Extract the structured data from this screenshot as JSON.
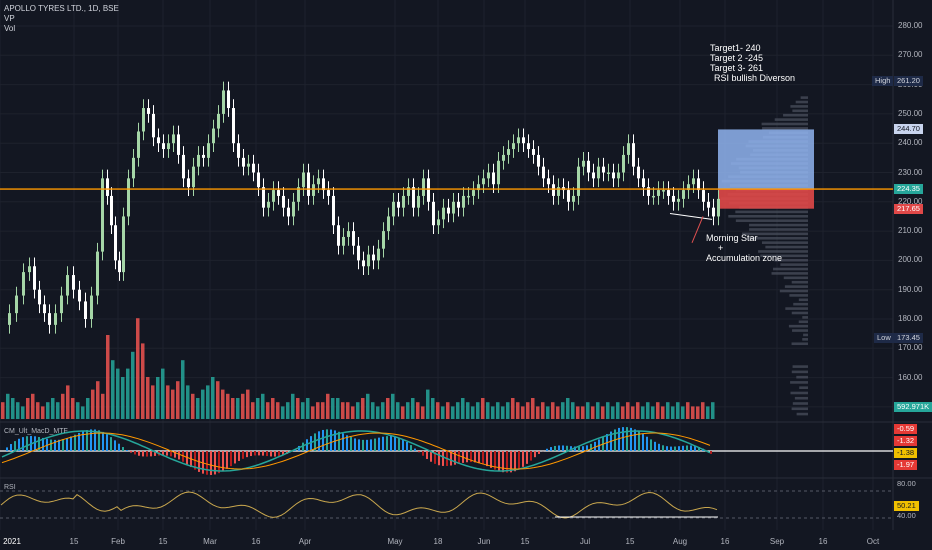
{
  "legend": {
    "title": "APOLLO TYRES LTD., 1D, BSE",
    "line2": "VP",
    "line3": "Vol"
  },
  "annotations": {
    "targets": [
      "Target1- 240",
      "Target 2 -245",
      "Target 3- 261"
    ],
    "rsi_note": "RSI bullish Diverson",
    "pattern": [
      "Morning Star",
      "+",
      "Accumulation zone"
    ]
  },
  "indicators": {
    "macd_label": "CM_Ult_MacD_MTF",
    "rsi_label": "RSI"
  },
  "colors": {
    "background": "#131722",
    "up": "#26a69a",
    "down": "#ef5350",
    "candle_up": "#a5d6a7",
    "candle_down": "#ffffff",
    "hline": "#ff9800",
    "rsi": "#c9a74e"
  },
  "chart_data": {
    "type": "candlestick",
    "symbol": "APOLLO TYRES LTD.",
    "interval": "1D",
    "exchange": "BSE",
    "x_ticks": [
      "2021",
      "15",
      "Feb",
      "15",
      "Mar",
      "16",
      "Apr",
      "May",
      "18",
      "Jun",
      "15",
      "Jul",
      "15",
      "Aug",
      "16",
      "Sep",
      "16",
      "Oct"
    ],
    "y_ticks": [
      "280.00",
      "270.00",
      "260.00",
      "250.00",
      "240.00",
      "230.00",
      "220.00",
      "210.00",
      "200.00",
      "190.00",
      "180.00",
      "170.00",
      "160.00",
      "150.00"
    ],
    "ylim": [
      145,
      285
    ],
    "price_labels": [
      {
        "text": "High",
        "value": "261.20"
      },
      {
        "text": "",
        "value": "244.70"
      },
      {
        "text": "",
        "value": "224.35"
      },
      {
        "text": "",
        "value": "217.65"
      },
      {
        "text": "Low",
        "value": "173.45"
      }
    ],
    "volume_label": "592.971K",
    "horizontal_line": 224.35,
    "profile_zone": {
      "top": 244.7,
      "bottom": 217.65,
      "mid": 224.35
    },
    "price_path": [
      [
        1,
        178
      ],
      [
        8,
        182
      ],
      [
        15,
        188
      ],
      [
        22,
        196
      ],
      [
        28,
        198
      ],
      [
        33,
        190
      ],
      [
        38,
        185
      ],
      [
        43,
        182
      ],
      [
        48,
        178
      ],
      [
        54,
        182
      ],
      [
        60,
        188
      ],
      [
        66,
        195
      ],
      [
        72,
        190
      ],
      [
        78,
        186
      ],
      [
        84,
        180
      ],
      [
        90,
        188
      ],
      [
        96,
        203
      ],
      [
        101,
        228
      ],
      [
        106,
        222
      ],
      [
        110,
        212
      ],
      [
        114,
        200
      ],
      [
        118,
        196
      ],
      [
        122,
        215
      ],
      [
        127,
        228
      ],
      [
        132,
        235
      ],
      [
        137,
        244
      ],
      [
        142,
        252
      ],
      [
        147,
        250
      ],
      [
        152,
        242
      ],
      [
        157,
        240
      ],
      [
        162,
        238
      ],
      [
        167,
        240
      ],
      [
        172,
        243
      ],
      [
        177,
        236
      ],
      [
        182,
        228
      ],
      [
        187,
        225
      ],
      [
        192,
        232
      ],
      [
        197,
        236
      ],
      [
        202,
        235
      ],
      [
        207,
        240
      ],
      [
        212,
        245
      ],
      [
        217,
        250
      ],
      [
        222,
        258
      ],
      [
        227,
        252
      ],
      [
        232,
        240
      ],
      [
        237,
        235
      ],
      [
        242,
        232
      ],
      [
        247,
        233
      ],
      [
        252,
        230
      ],
      [
        257,
        225
      ],
      [
        262,
        218
      ],
      [
        267,
        220
      ],
      [
        272,
        224
      ],
      [
        277,
        222
      ],
      [
        282,
        218
      ],
      [
        287,
        215
      ],
      [
        292,
        220
      ],
      [
        297,
        225
      ],
      [
        302,
        230
      ],
      [
        307,
        222
      ],
      [
        312,
        226
      ],
      [
        317,
        228
      ],
      [
        322,
        224
      ],
      [
        327,
        222
      ],
      [
        332,
        212
      ],
      [
        337,
        205
      ],
      [
        342,
        208
      ],
      [
        347,
        210
      ],
      [
        352,
        205
      ],
      [
        357,
        200
      ],
      [
        362,
        198
      ],
      [
        367,
        202
      ],
      [
        372,
        200
      ],
      [
        377,
        204
      ],
      [
        382,
        210
      ],
      [
        387,
        215
      ],
      [
        392,
        220
      ],
      [
        397,
        218
      ],
      [
        402,
        222
      ],
      [
        407,
        225
      ],
      [
        412,
        218
      ],
      [
        417,
        222
      ],
      [
        422,
        228
      ],
      [
        427,
        220
      ],
      [
        432,
        212
      ],
      [
        437,
        214
      ],
      [
        442,
        218
      ],
      [
        447,
        216
      ],
      [
        452,
        220
      ],
      [
        457,
        218
      ],
      [
        462,
        222
      ],
      [
        467,
        222
      ],
      [
        472,
        224
      ],
      [
        477,
        226
      ],
      [
        482,
        228
      ],
      [
        487,
        230
      ],
      [
        492,
        226
      ],
      [
        497,
        234
      ],
      [
        502,
        236
      ],
      [
        507,
        238
      ],
      [
        512,
        240
      ],
      [
        517,
        242
      ],
      [
        522,
        240
      ],
      [
        527,
        238
      ],
      [
        532,
        236
      ],
      [
        537,
        232
      ],
      [
        542,
        228
      ],
      [
        547,
        226
      ],
      [
        552,
        222
      ],
      [
        557,
        225
      ],
      [
        562,
        224
      ],
      [
        567,
        220
      ],
      [
        572,
        222
      ],
      [
        577,
        232
      ],
      [
        582,
        234
      ],
      [
        587,
        230
      ],
      [
        592,
        228
      ],
      [
        597,
        232
      ],
      [
        602,
        230
      ],
      [
        607,
        230
      ],
      [
        612,
        228
      ],
      [
        617,
        230
      ],
      [
        622,
        236
      ],
      [
        627,
        240
      ],
      [
        632,
        232
      ],
      [
        637,
        228
      ],
      [
        642,
        225
      ],
      [
        647,
        222
      ],
      [
        652,
        222
      ],
      [
        657,
        224
      ],
      [
        662,
        224
      ],
      [
        667,
        222
      ],
      [
        672,
        220
      ],
      [
        677,
        221
      ],
      [
        682,
        224
      ],
      [
        687,
        226
      ],
      [
        692,
        228
      ],
      [
        697,
        224
      ],
      [
        702,
        220
      ],
      [
        707,
        218
      ],
      [
        712,
        215
      ],
      [
        717,
        221
      ]
    ],
    "volume": [
      4,
      6,
      5,
      4,
      3,
      5,
      6,
      4,
      3,
      4,
      5,
      4,
      6,
      8,
      5,
      4,
      3,
      5,
      7,
      9,
      6,
      20,
      14,
      12,
      10,
      12,
      16,
      24,
      18,
      10,
      8,
      10,
      12,
      8,
      7,
      9,
      14,
      8,
      6,
      5,
      7,
      8,
      10,
      9,
      7,
      6,
      5,
      5,
      6,
      7,
      4,
      5,
      6,
      4,
      5,
      4,
      3,
      4,
      6,
      5,
      4,
      5,
      3,
      4,
      4,
      6,
      5,
      5,
      4,
      4,
      3,
      4,
      5,
      6,
      4,
      3,
      4,
      5,
      6,
      4,
      3,
      4,
      5,
      4,
      3,
      7,
      5,
      4,
      3,
      4,
      3,
      4,
      5,
      4,
      3,
      4,
      5,
      4,
      3,
      4,
      3,
      4,
      5,
      4,
      3,
      4,
      5,
      3,
      4,
      3,
      4,
      3,
      4,
      5,
      4,
      3,
      3,
      4,
      3,
      4,
      3,
      4,
      3,
      4,
      3,
      4,
      3,
      4,
      3,
      4,
      3,
      4,
      3,
      4,
      3,
      4,
      3,
      4,
      3,
      3,
      4,
      3,
      4
    ],
    "macd_axis": [
      "-0.59",
      "-1.32",
      "-1.38",
      "-1.97"
    ],
    "rsi_axis": [
      "80.00",
      "50.21",
      "40.00"
    ],
    "rsi_value": 50.21
  }
}
